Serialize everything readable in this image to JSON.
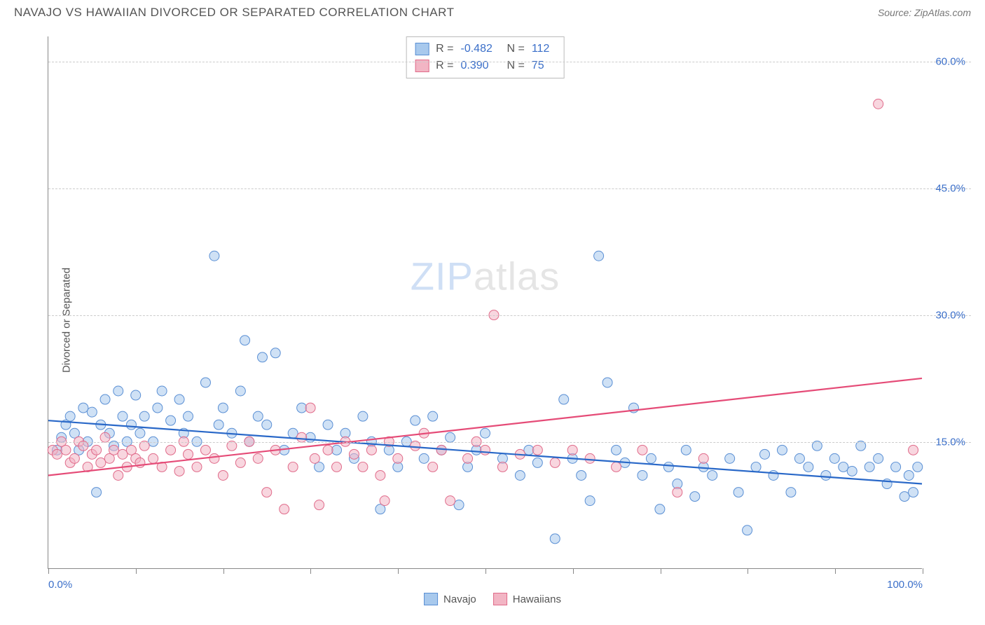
{
  "title": "NAVAJO VS HAWAIIAN DIVORCED OR SEPARATED CORRELATION CHART",
  "source": "Source: ZipAtlas.com",
  "ylabel": "Divorced or Separated",
  "watermark_zip": "ZIP",
  "watermark_atlas": "atlas",
  "chart": {
    "type": "scatter",
    "background_color": "#ffffff",
    "grid_color": "#cccccc",
    "axis_color": "#888888",
    "xlim": [
      0,
      100
    ],
    "ylim": [
      0,
      63
    ],
    "x_ticks": [
      0,
      10,
      20,
      30,
      40,
      50,
      60,
      70,
      80,
      90,
      100
    ],
    "x_tick_labels": {
      "0": "0.0%",
      "100": "100.0%"
    },
    "y_grid": [
      15,
      30,
      45,
      60
    ],
    "y_tick_labels": {
      "15": "15.0%",
      "30": "30.0%",
      "45": "45.0%",
      "60": "60.0%"
    },
    "marker_radius": 7,
    "marker_opacity": 0.55,
    "marker_stroke_width": 1,
    "line_width": 2.2,
    "series": [
      {
        "name": "Navajo",
        "fill": "#a8c9ed",
        "stroke": "#5a8fd4",
        "line_color": "#2968c8",
        "R": "-0.482",
        "N": "112",
        "trend": {
          "x1": 0,
          "y1": 17.5,
          "x2": 100,
          "y2": 10.0
        },
        "points": [
          [
            1,
            14
          ],
          [
            1.5,
            15.5
          ],
          [
            2,
            17
          ],
          [
            2.5,
            18
          ],
          [
            3,
            16
          ],
          [
            3.5,
            14
          ],
          [
            4,
            19
          ],
          [
            4.5,
            15
          ],
          [
            5,
            18.5
          ],
          [
            5.5,
            9
          ],
          [
            6,
            17
          ],
          [
            6.5,
            20
          ],
          [
            7,
            16
          ],
          [
            7.5,
            14.5
          ],
          [
            8,
            21
          ],
          [
            8.5,
            18
          ],
          [
            9,
            15
          ],
          [
            9.5,
            17
          ],
          [
            10,
            20.5
          ],
          [
            10.5,
            16
          ],
          [
            11,
            18
          ],
          [
            12,
            15
          ],
          [
            12.5,
            19
          ],
          [
            13,
            21
          ],
          [
            14,
            17.5
          ],
          [
            15,
            20
          ],
          [
            15.5,
            16
          ],
          [
            16,
            18
          ],
          [
            17,
            15
          ],
          [
            18,
            22
          ],
          [
            19,
            37
          ],
          [
            19.5,
            17
          ],
          [
            20,
            19
          ],
          [
            21,
            16
          ],
          [
            22,
            21
          ],
          [
            22.5,
            27
          ],
          [
            23,
            15
          ],
          [
            24,
            18
          ],
          [
            24.5,
            25
          ],
          [
            25,
            17
          ],
          [
            26,
            25.5
          ],
          [
            27,
            14
          ],
          [
            28,
            16
          ],
          [
            29,
            19
          ],
          [
            30,
            15.5
          ],
          [
            31,
            12
          ],
          [
            32,
            17
          ],
          [
            33,
            14
          ],
          [
            34,
            16
          ],
          [
            35,
            13
          ],
          [
            36,
            18
          ],
          [
            37,
            15
          ],
          [
            38,
            7
          ],
          [
            39,
            14
          ],
          [
            40,
            12
          ],
          [
            41,
            15
          ],
          [
            42,
            17.5
          ],
          [
            43,
            13
          ],
          [
            44,
            18
          ],
          [
            45,
            14
          ],
          [
            46,
            15.5
          ],
          [
            47,
            7.5
          ],
          [
            48,
            12
          ],
          [
            49,
            14
          ],
          [
            50,
            16
          ],
          [
            52,
            13
          ],
          [
            54,
            11
          ],
          [
            55,
            14
          ],
          [
            56,
            12.5
          ],
          [
            58,
            3.5
          ],
          [
            59,
            20
          ],
          [
            60,
            13
          ],
          [
            61,
            11
          ],
          [
            62,
            8
          ],
          [
            63,
            37
          ],
          [
            64,
            22
          ],
          [
            65,
            14
          ],
          [
            66,
            12.5
          ],
          [
            67,
            19
          ],
          [
            68,
            11
          ],
          [
            69,
            13
          ],
          [
            70,
            7
          ],
          [
            71,
            12
          ],
          [
            72,
            10
          ],
          [
            73,
            14
          ],
          [
            74,
            8.5
          ],
          [
            75,
            12
          ],
          [
            76,
            11
          ],
          [
            78,
            13
          ],
          [
            79,
            9
          ],
          [
            80,
            4.5
          ],
          [
            81,
            12
          ],
          [
            82,
            13.5
          ],
          [
            83,
            11
          ],
          [
            84,
            14
          ],
          [
            85,
            9
          ],
          [
            86,
            13
          ],
          [
            87,
            12
          ],
          [
            88,
            14.5
          ],
          [
            89,
            11
          ],
          [
            90,
            13
          ],
          [
            91,
            12
          ],
          [
            92,
            11.5
          ],
          [
            93,
            14.5
          ],
          [
            94,
            12
          ],
          [
            95,
            13
          ],
          [
            96,
            10
          ],
          [
            97,
            12
          ],
          [
            98,
            8.5
          ],
          [
            98.5,
            11
          ],
          [
            99,
            9
          ],
          [
            99.5,
            12
          ]
        ]
      },
      {
        "name": "Hawaiians",
        "fill": "#f2b5c4",
        "stroke": "#e06b8a",
        "line_color": "#e54b77",
        "R": "0.390",
        "N": "75",
        "trend": {
          "x1": 0,
          "y1": 11.0,
          "x2": 100,
          "y2": 22.5
        },
        "points": [
          [
            0.5,
            14
          ],
          [
            1,
            13.5
          ],
          [
            1.5,
            15
          ],
          [
            2,
            14
          ],
          [
            2.5,
            12.5
          ],
          [
            3,
            13
          ],
          [
            3.5,
            15
          ],
          [
            4,
            14.5
          ],
          [
            4.5,
            12
          ],
          [
            5,
            13.5
          ],
          [
            5.5,
            14
          ],
          [
            6,
            12.5
          ],
          [
            6.5,
            15.5
          ],
          [
            7,
            13
          ],
          [
            7.5,
            14
          ],
          [
            8,
            11
          ],
          [
            8.5,
            13.5
          ],
          [
            9,
            12
          ],
          [
            9.5,
            14
          ],
          [
            10,
            13
          ],
          [
            10.5,
            12.5
          ],
          [
            11,
            14.5
          ],
          [
            12,
            13
          ],
          [
            13,
            12
          ],
          [
            14,
            14
          ],
          [
            15,
            11.5
          ],
          [
            15.5,
            15
          ],
          [
            16,
            13.5
          ],
          [
            17,
            12
          ],
          [
            18,
            14
          ],
          [
            19,
            13
          ],
          [
            20,
            11
          ],
          [
            21,
            14.5
          ],
          [
            22,
            12.5
          ],
          [
            23,
            15
          ],
          [
            24,
            13
          ],
          [
            25,
            9
          ],
          [
            26,
            14
          ],
          [
            27,
            7
          ],
          [
            28,
            12
          ],
          [
            29,
            15.5
          ],
          [
            30,
            19
          ],
          [
            30.5,
            13
          ],
          [
            31,
            7.5
          ],
          [
            32,
            14
          ],
          [
            33,
            12
          ],
          [
            34,
            15
          ],
          [
            35,
            13.5
          ],
          [
            36,
            12
          ],
          [
            37,
            14
          ],
          [
            38,
            11
          ],
          [
            38.5,
            8
          ],
          [
            39,
            15
          ],
          [
            40,
            13
          ],
          [
            42,
            14.5
          ],
          [
            43,
            16
          ],
          [
            44,
            12
          ],
          [
            45,
            14
          ],
          [
            46,
            8
          ],
          [
            48,
            13
          ],
          [
            49,
            15
          ],
          [
            50,
            14
          ],
          [
            51,
            30
          ],
          [
            52,
            12
          ],
          [
            54,
            13.5
          ],
          [
            56,
            14
          ],
          [
            58,
            12.5
          ],
          [
            60,
            14
          ],
          [
            62,
            13
          ],
          [
            65,
            12
          ],
          [
            68,
            14
          ],
          [
            72,
            9
          ],
          [
            75,
            13
          ],
          [
            95,
            55
          ],
          [
            99,
            14
          ]
        ]
      }
    ]
  },
  "legend": {
    "navajo": "Navajo",
    "hawaiians": "Hawaiians"
  },
  "stats_labels": {
    "R": "R =",
    "N": "N ="
  }
}
